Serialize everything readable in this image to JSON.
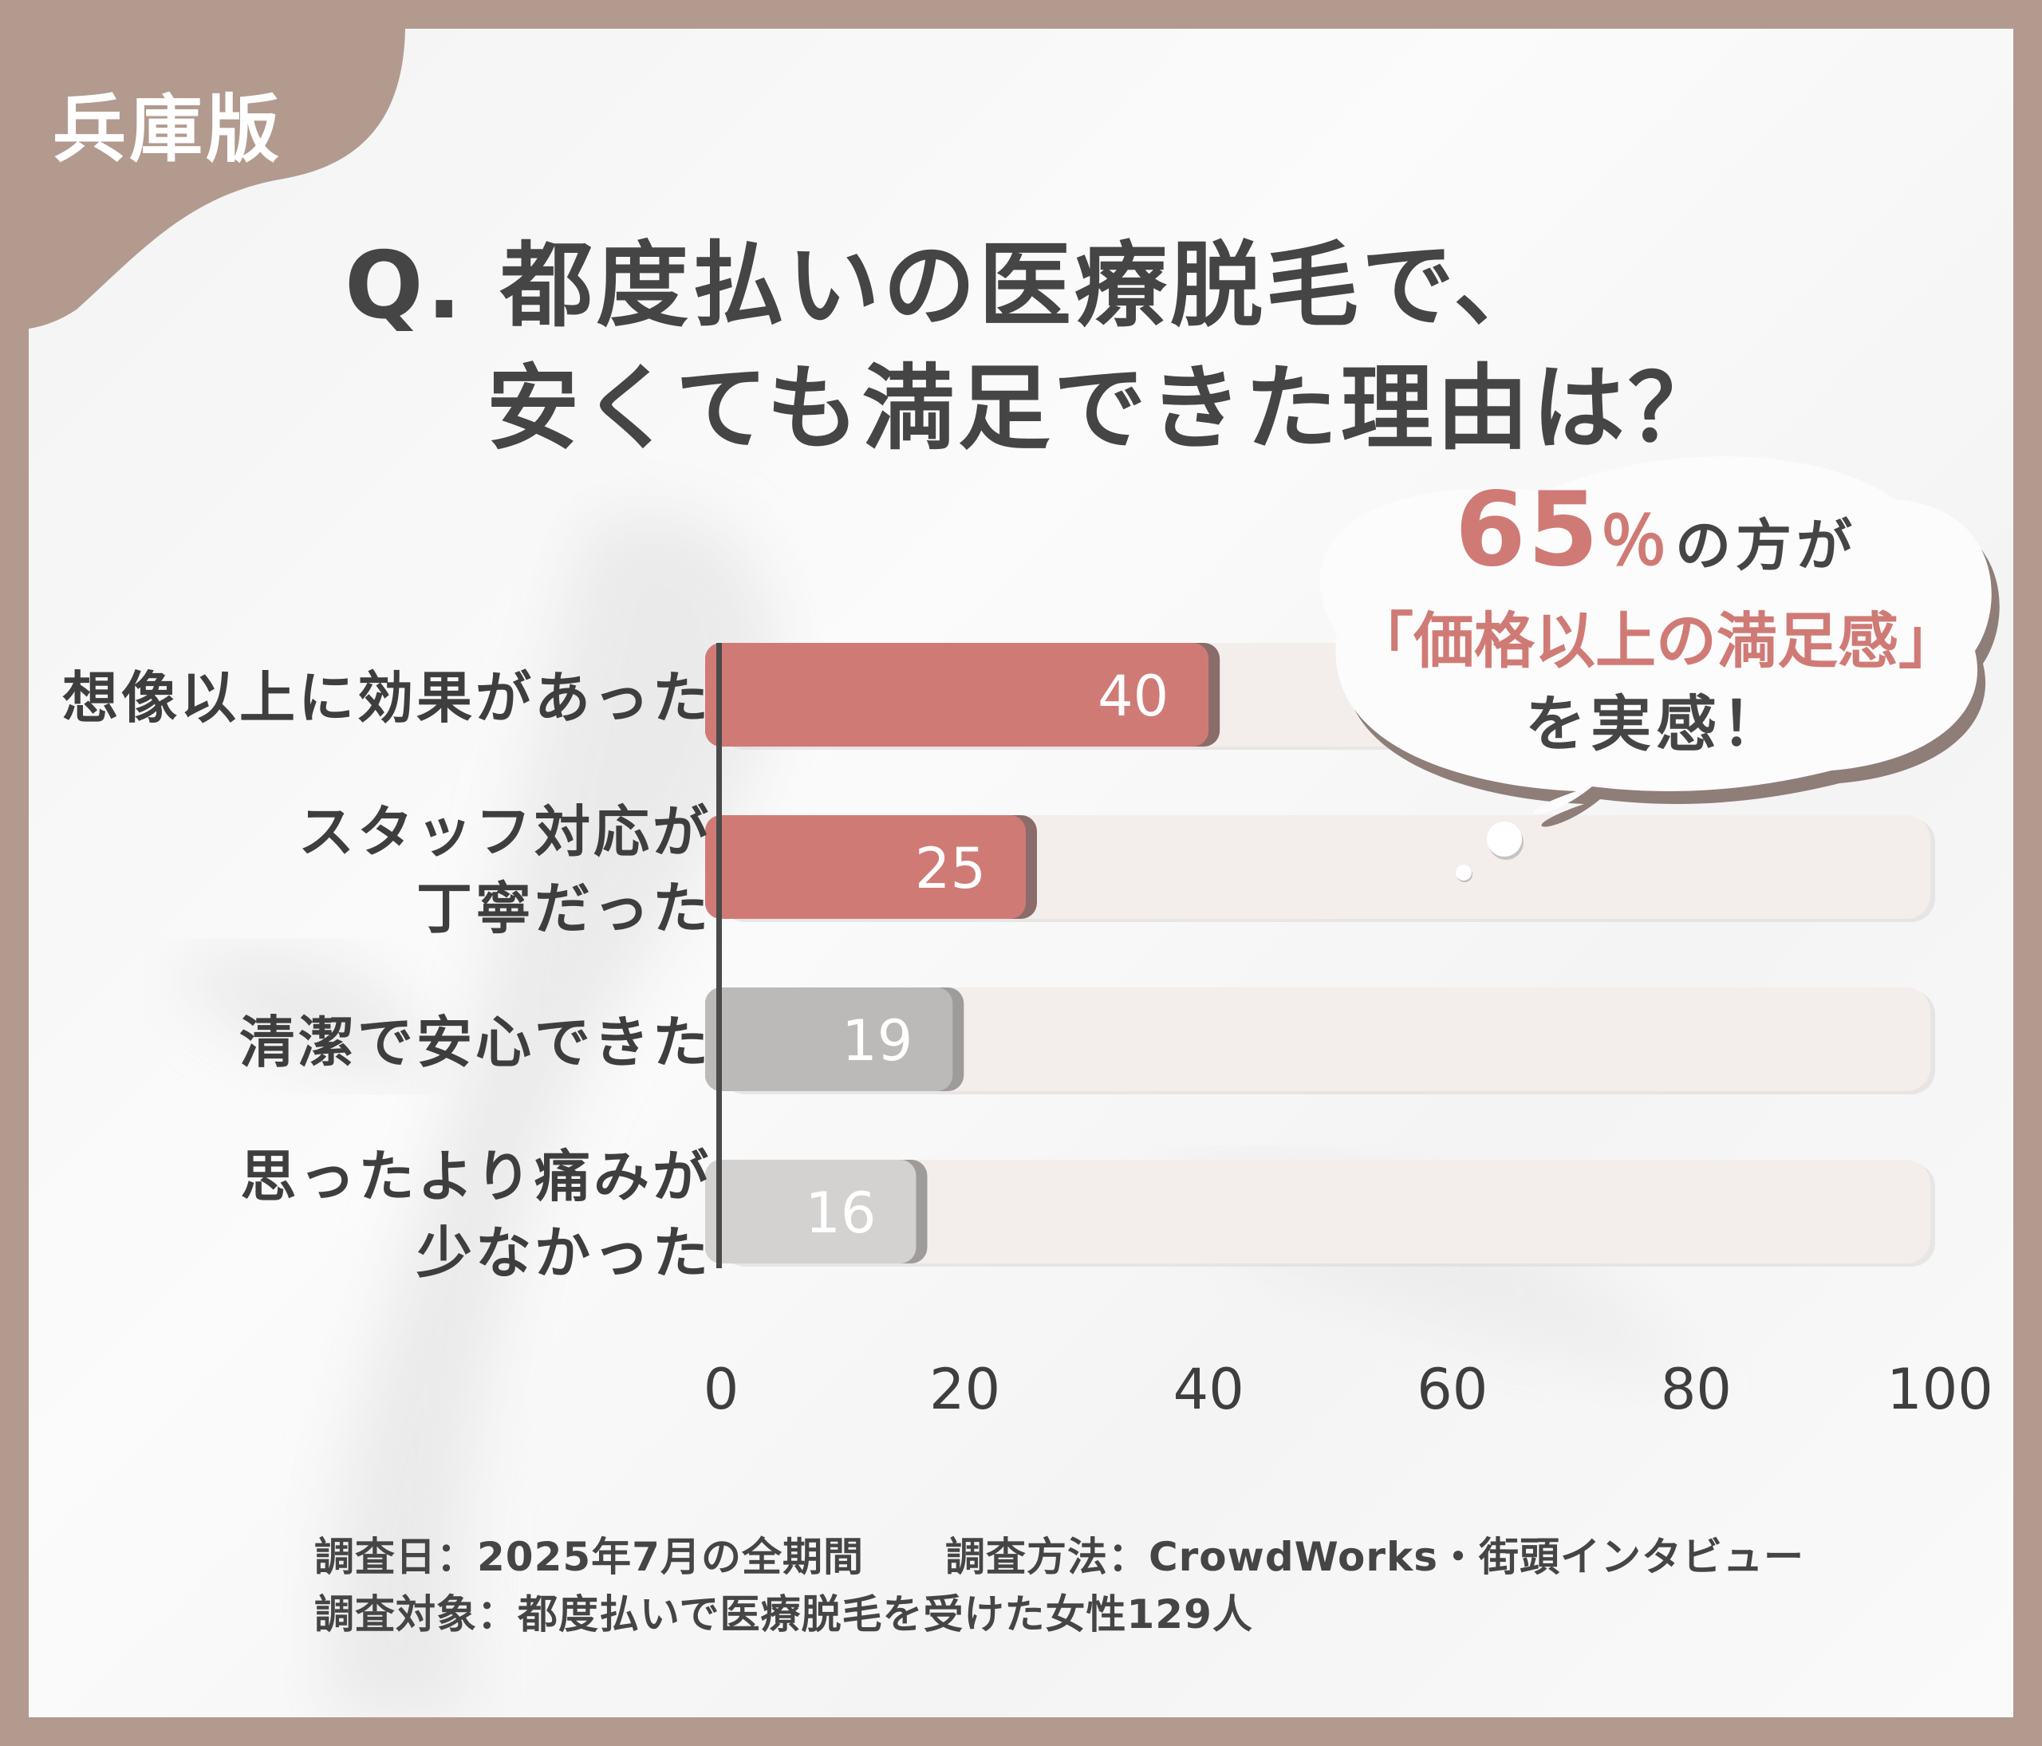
{
  "region": "兵庫版",
  "title": {
    "line1": "Q. 都度払いの医療脱毛で、",
    "line2": "安くても満足できた理由は？"
  },
  "callout": {
    "percent": "65",
    "percent_sign": "％",
    "text_after": "の方が",
    "quote": "「価格以上の満足感」",
    "last": "を実感！"
  },
  "chart_data": {
    "type": "bar",
    "orientation": "horizontal",
    "categories": [
      [
        "想像以上に効果があった"
      ],
      [
        "スタッフ対応が",
        "丁寧だった"
      ],
      [
        "清潔で安心できた"
      ],
      [
        "思ったより痛みが",
        "少なかった"
      ]
    ],
    "values": [
      40,
      25,
      19,
      16
    ],
    "value_labels": [
      "40",
      "25",
      "19",
      "16"
    ],
    "xlim": [
      0,
      100
    ],
    "xticks": [
      "0",
      "20",
      "40",
      "60",
      "80",
      "100"
    ],
    "highlighted": [
      true,
      true,
      false,
      false
    ],
    "grid": false
  },
  "colors": {
    "highlight": "#d07a76",
    "highlight_shadow": "#8a6c6a",
    "neutral": "#bcbab9",
    "neutral_light": "#d4d2d1",
    "neutral_shadow": "#9e9c9b",
    "track": "#f3eeec",
    "frame": "#b29a8f",
    "accent_text": "#d07a76"
  },
  "footnotes": {
    "line1": "調査日：2025年7月の全期間　　調査方法：CrowdWorks・街頭インタビュー",
    "line2": "調査対象：都度払いで医療脱毛を受けた女性129人"
  }
}
